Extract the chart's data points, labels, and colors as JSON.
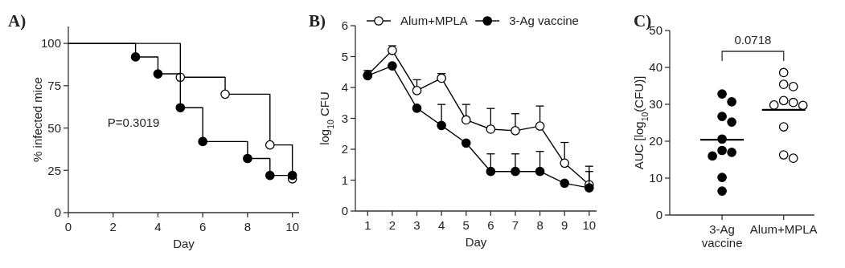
{
  "chart_data": [
    {
      "type": "step",
      "title": "A)",
      "xlabel": "Day",
      "ylabel": "% infected mice",
      "xlim": [
        0,
        10.3
      ],
      "xticks": [
        0,
        2,
        4,
        6,
        8,
        10
      ],
      "ylim": [
        0,
        110
      ],
      "yticks": [
        0,
        25,
        50,
        75,
        100
      ],
      "marker": "circle",
      "legend": false,
      "annotations": [
        "P=0.3019"
      ],
      "series": [
        {
          "color": "#000000",
          "x": [
            0,
            5,
            7,
            9,
            10
          ],
          "values": [
            100,
            80,
            70,
            40,
            20
          ]
        },
        {
          "color": "#000000",
          "x": [
            0,
            3,
            4,
            5,
            6,
            8,
            9,
            10
          ],
          "values": [
            100,
            92,
            82,
            62,
            42,
            32,
            22,
            22
          ]
        }
      ]
    },
    {
      "type": "line",
      "title": "B)",
      "xlabel": "Day",
      "ylabel": "log$_{10}$ CFU",
      "xlim": [
        0.5,
        10.3
      ],
      "xticks": [
        1,
        2,
        3,
        4,
        5,
        6,
        7,
        8,
        9,
        10
      ],
      "ylim": [
        0,
        6
      ],
      "yticks": [
        0,
        1,
        2,
        3,
        4,
        5,
        6
      ],
      "marker": "circle",
      "legend": "top",
      "series": [
        {
          "name": "Alum+MPLA",
          "color": "#000000",
          "x": [
            1,
            2,
            3,
            4,
            5,
            6,
            7,
            8,
            9,
            10
          ],
          "values": [
            4.4,
            5.2,
            3.9,
            4.3,
            2.95,
            2.65,
            2.6,
            2.75,
            1.55,
            0.85
          ],
          "errors": [
            [
              4.4,
              4.55
            ],
            [
              5.2,
              5.35
            ],
            [
              3.9,
              4.25
            ],
            [
              4.3,
              4.45
            ],
            [
              2.95,
              3.45
            ],
            [
              2.65,
              3.32
            ],
            [
              2.6,
              3.15
            ],
            [
              2.75,
              3.4
            ],
            [
              1.55,
              2.22
            ],
            [
              0.85,
              1.45
            ]
          ]
        },
        {
          "name": "3-Ag vaccine",
          "color": "#000000",
          "x": [
            1,
            2,
            3,
            4,
            5,
            6,
            7,
            8,
            9,
            10
          ],
          "values": [
            4.38,
            4.7,
            3.33,
            2.77,
            2.2,
            1.28,
            1.28,
            1.28,
            0.9,
            0.75
          ],
          "errors": [
            null,
            null,
            null,
            [
              2.77,
              3.45
            ],
            null,
            [
              1.28,
              1.85
            ],
            [
              1.28,
              1.85
            ],
            [
              1.28,
              1.93
            ],
            null,
            [
              0.75,
              1.28
            ]
          ]
        }
      ]
    },
    {
      "type": "scatter",
      "title": "C)",
      "ylabel": "AUC [log$_{10}$(CFU)]",
      "categories": [
        "3-Ag vaccine",
        "Alum+MPLA"
      ],
      "ylim": [
        0,
        50
      ],
      "yticks": [
        0,
        10,
        20,
        30,
        40,
        50
      ],
      "marker": "circle",
      "annotations": [
        "0.0718"
      ],
      "series": [
        {
          "color": "#000000",
          "x": [
            "Alum+MPLA",
            "Alum+MPLA",
            "Alum+MPLA",
            "Alum+MPLA",
            "Alum+MPLA",
            "Alum+MPLA",
            "Alum+MPLA",
            "Alum+MPLA",
            "Alum+MPLA",
            "Alum+MPLA"
          ],
          "values": [
            38.6,
            35.4,
            34.8,
            31.0,
            30.5,
            29.8,
            29.7,
            23.9,
            16.3,
            15.4
          ]
        },
        {
          "color": "#000000",
          "x": [
            "3-Ag vaccine",
            "3-Ag vaccine",
            "3-Ag vaccine",
            "3-Ag vaccine",
            "3-Ag vaccine",
            "3-Ag vaccine",
            "3-Ag vaccine",
            "3-Ag vaccine",
            "3-Ag vaccine",
            "3-Ag vaccine"
          ],
          "values": [
            32.8,
            30.7,
            26.7,
            25.2,
            20.6,
            17.5,
            17.0,
            16.0,
            10.2,
            6.5
          ]
        }
      ],
      "ref_lines": [
        {
          "axis": "y",
          "value": 20.4,
          "color": "#000000"
        },
        {
          "axis": "y",
          "value": 28.5,
          "color": "#000000"
        }
      ]
    }
  ]
}
